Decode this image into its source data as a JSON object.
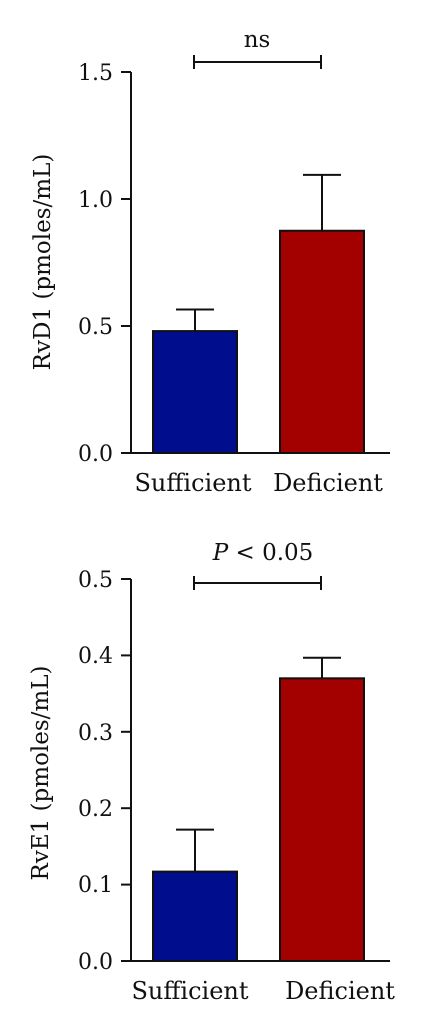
{
  "colors": {
    "sufficient": "#000d8c",
    "deficient": "#a30000",
    "axis": "#111111"
  },
  "chart_data": [
    {
      "type": "bar",
      "categories": [
        "Sufficient",
        "Deficient"
      ],
      "values": [
        0.48,
        0.875
      ],
      "errors": [
        0.085,
        0.22
      ],
      "ylabel": "RvD1 (pmoles/mL)",
      "ylim": [
        0,
        1.5
      ],
      "yticks": [
        "0.0",
        "0.5",
        "1.0",
        "1.5"
      ],
      "significance": {
        "label": "ns",
        "italic_p": "",
        "between": [
          "Sufficient",
          "Deficient"
        ]
      },
      "grid": false
    },
    {
      "type": "bar",
      "categories": [
        "Sufficient",
        "Deficient"
      ],
      "values": [
        0.117,
        0.37
      ],
      "errors": [
        0.055,
        0.027
      ],
      "ylabel": "RvE1 (pmoles/mL)",
      "ylim": [
        0,
        0.5
      ],
      "yticks": [
        "0.0",
        "0.1",
        "0.2",
        "0.3",
        "0.4",
        "0.5"
      ],
      "significance": {
        "label": " < 0.05",
        "italic_p": "P",
        "between": [
          "Sufficient",
          "Deficient"
        ]
      },
      "grid": false
    }
  ]
}
